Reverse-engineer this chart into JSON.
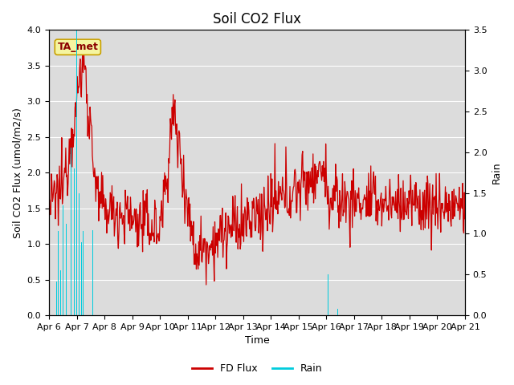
{
  "title": "Soil CO2 Flux",
  "xlabel": "Time",
  "ylabel_left": "Soil CO2 Flux (umol/m2/s)",
  "ylabel_right": "Rain",
  "annotation_text": "TA_met",
  "annotation_color": "#8B0000",
  "annotation_bg": "#F5F5A0",
  "annotation_border": "#C8A000",
  "flux_color": "#CC0000",
  "rain_color": "#00CCDD",
  "ylim_left": [
    0.0,
    4.0
  ],
  "ylim_right": [
    0.0,
    3.5
  ],
  "yticks_left": [
    0.0,
    0.5,
    1.0,
    1.5,
    2.0,
    2.5,
    3.0,
    3.5,
    4.0
  ],
  "yticks_right": [
    0.0,
    0.5,
    1.0,
    1.5,
    2.0,
    2.5,
    3.0,
    3.5
  ],
  "legend_items": [
    "FD Flux",
    "Rain"
  ],
  "bg_color": "#DCDCDC",
  "title_fontsize": 12,
  "axis_label_fontsize": 9,
  "tick_fontsize": 8
}
